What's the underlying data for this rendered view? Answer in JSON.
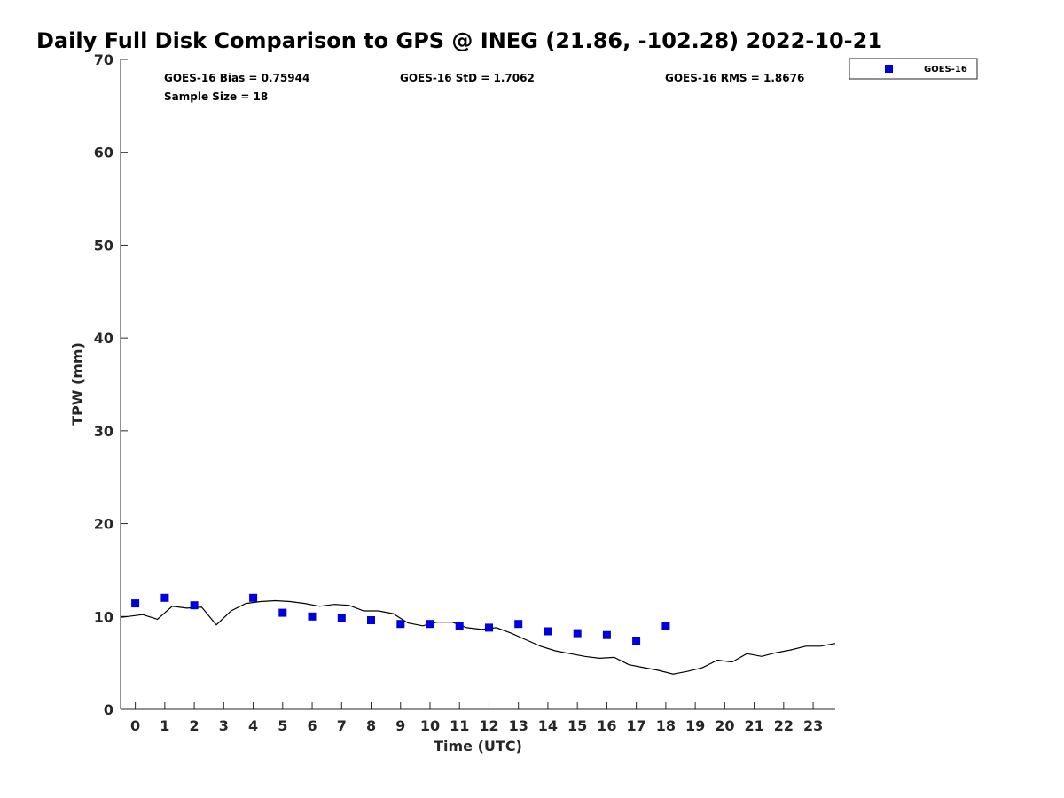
{
  "chart_data": {
    "type": "scatter",
    "title": "Daily Full Disk Comparison to GPS @ INEG (21.86, -102.28) 2022-10-21",
    "xlabel": "Time (UTC)",
    "ylabel": "TPW (mm)",
    "xlim": [
      -0.5,
      23.75
    ],
    "ylim": [
      0,
      70
    ],
    "x_ticks": [
      0,
      1,
      2,
      3,
      4,
      5,
      6,
      7,
      8,
      9,
      10,
      11,
      12,
      13,
      14,
      15,
      16,
      17,
      18,
      19,
      20,
      21,
      22,
      23
    ],
    "y_ticks": [
      0,
      10,
      20,
      30,
      40,
      50,
      60,
      70
    ],
    "grid": false,
    "legend_position": "top-right, outside axes",
    "stats": {
      "bias": "GOES-16 Bias = 0.75944",
      "std": "GOES-16 StD = 1.7062",
      "rms": "GOES-16 RMS = 1.8676",
      "sample_size": "Sample Size = 18"
    },
    "series": [
      {
        "name": "GOES-16",
        "kind": "scatter",
        "marker": "square",
        "color": "#0000dd",
        "x": [
          0,
          1,
          2,
          4,
          5,
          6,
          7,
          8,
          9,
          10,
          11,
          12,
          13,
          14,
          15,
          16,
          17,
          18
        ],
        "y": [
          11.4,
          12.0,
          11.2,
          12.0,
          10.4,
          10.0,
          9.8,
          9.6,
          9.2,
          9.2,
          9.0,
          8.8,
          9.2,
          8.4,
          8.2,
          8.0,
          7.4,
          9.0
        ]
      },
      {
        "kind": "line",
        "color": "#000000",
        "x": [
          -0.5,
          -0.25,
          0.25,
          0.75,
          1.25,
          1.75,
          2.25,
          2.75,
          3.25,
          3.75,
          4.25,
          4.75,
          5.25,
          5.75,
          6.25,
          6.75,
          7.25,
          7.75,
          8.25,
          8.75,
          9.25,
          9.75,
          10.25,
          10.75,
          11.25,
          11.75,
          12.25,
          12.75,
          13.25,
          13.75,
          14.25,
          14.75,
          15.25,
          15.75,
          16.25,
          16.75,
          17.25,
          17.75,
          18.25,
          18.75,
          19.25,
          19.75,
          20.25,
          20.75,
          21.25,
          21.75,
          22.25,
          22.75,
          23.25,
          23.75
        ],
        "y": [
          9.9,
          10.0,
          10.2,
          9.7,
          11.1,
          10.9,
          11.0,
          9.1,
          10.6,
          11.4,
          11.6,
          11.7,
          11.6,
          11.4,
          11.1,
          11.3,
          11.2,
          10.6,
          10.6,
          10.3,
          9.3,
          9.0,
          9.4,
          9.4,
          8.8,
          8.6,
          8.8,
          8.2,
          7.5,
          6.8,
          6.3,
          6.0,
          5.7,
          5.5,
          5.6,
          4.8,
          4.5,
          4.2,
          3.8,
          4.1,
          4.5,
          5.3,
          5.1,
          6.0,
          5.7,
          6.1,
          6.4,
          6.8,
          6.8,
          7.1
        ]
      }
    ]
  }
}
